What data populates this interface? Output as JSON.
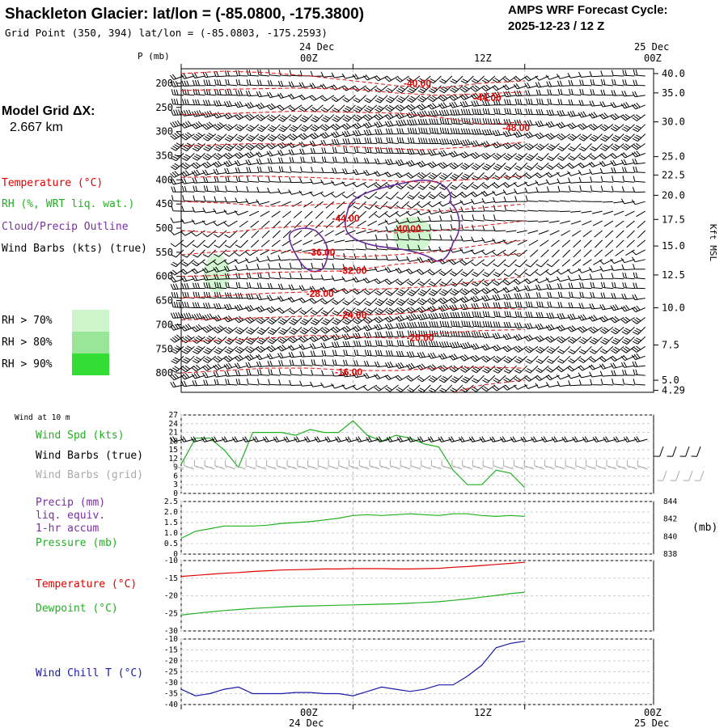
{
  "header": {
    "title": "Shackleton Glacier:  lat/lon = (-85.0800, -175.3800)",
    "subtitle": "Grid Point (350, 394) lat/lon = (-85.0803, -175.2593)",
    "cycle_line1": "AMPS WRF Forecast Cycle:",
    "cycle_line2": "2025-12-23 / 12  Z"
  },
  "sidebar": {
    "model_grid_line1": "Model Grid ΔX:",
    "model_grid_line2": "2.667 km",
    "legend": [
      {
        "label": "Temperature (°C)",
        "color": "#e00000"
      },
      {
        "label": "RH (%, WRT liq. wat.)",
        "color": "#22b022"
      },
      {
        "label": "Cloud/Precip Outline",
        "color": "#7a2fa0"
      },
      {
        "label": "Wind Barbs (kts) (true)",
        "color": "#000000"
      }
    ],
    "rh_boxes": [
      {
        "label": "RH > 70%",
        "color": "#ccf5cc"
      },
      {
        "label": "RH > 80%",
        "color": "#99e699"
      },
      {
        "label": "RH > 90%",
        "color": "#33dd33"
      }
    ]
  },
  "time_axis": {
    "top_labels": [
      {
        "day": "24 Dec",
        "hour": "00Z"
      },
      {
        "day": "",
        "hour": "12Z"
      },
      {
        "day": "25 Dec",
        "hour": "00Z"
      }
    ],
    "bottom_labels": [
      {
        "hour": "00Z",
        "day": "24 Dec"
      },
      {
        "hour": "12Z",
        "day": ""
      },
      {
        "hour": "00Z",
        "day": "25 Dec"
      }
    ],
    "hours": [
      -9,
      3,
      15
    ],
    "range": [
      -9,
      24
    ]
  },
  "chart_data": [
    {
      "type": "line",
      "name": "cross-section",
      "ylabel": "P (mb)",
      "ylabel_right": "Kft MSL",
      "pressure_ticks": [
        200,
        250,
        300,
        350,
        400,
        450,
        500,
        550,
        600,
        650,
        700,
        750,
        800
      ],
      "height_ticks": [
        "40.0",
        "35.0",
        "30.0",
        "25.0",
        "22.5",
        "20.0",
        "17.5",
        "15.0",
        "12.5",
        "10.0",
        "7.5",
        "5.0",
        "4.29"
      ],
      "height_tick_pressures": [
        180,
        220,
        280,
        352,
        390,
        432,
        482,
        537,
        597,
        665,
        742,
        815,
        836
      ],
      "ylim": [
        170,
        840
      ],
      "temperature_isotherms": [
        {
          "label": "-40.00",
          "x": 7.5,
          "p": 200
        },
        {
          "label": "-44.00",
          "x": 12.4,
          "p": 230
        },
        {
          "label": "-48.00",
          "x": 14.4,
          "p": 292
        },
        {
          "label": "-44.00",
          "x": 2.5,
          "p": 480
        },
        {
          "label": "-40.00",
          "x": 6.8,
          "p": 502
        },
        {
          "label": "-36.00",
          "x": 0.8,
          "p": 550
        },
        {
          "label": "-32.00",
          "x": 3.0,
          "p": 588
        },
        {
          "label": "-28.00",
          "x": 0.7,
          "p": 636
        },
        {
          "label": "-24.00",
          "x": 3.0,
          "p": 680
        },
        {
          "label": "-20.00",
          "x": 7.7,
          "p": 727
        },
        {
          "label": "-16.00",
          "x": 2.7,
          "p": 798
        }
      ],
      "barbs": {
        "time_start": -9,
        "time_step": 0.75,
        "count": 45,
        "pressure_levels": [
          185,
          205,
          225,
          245,
          265,
          285,
          305,
          325,
          345,
          365,
          385,
          405,
          425,
          445,
          465,
          485,
          505,
          525,
          545,
          565,
          585,
          605,
          625,
          645,
          665,
          685,
          705,
          725,
          745,
          765,
          785,
          805,
          825
        ]
      }
    },
    {
      "type": "line",
      "name": "wind",
      "title": "Wind at 10 m",
      "labels": [
        "Wind Spd (kts)",
        "Wind Barbs (true)",
        "Wind Barbs (grid)"
      ],
      "label_colors": [
        "#22b022",
        "#000000",
        "#aaaaaa"
      ],
      "y_ticks": [
        27,
        24,
        21,
        18,
        15,
        12,
        9,
        6,
        3,
        0
      ],
      "ylim": [
        0,
        27
      ],
      "x": [
        -9,
        -8,
        -7,
        -6,
        -5,
        -4,
        -3,
        -2,
        -1,
        0,
        1,
        2,
        3,
        4,
        5,
        6,
        7,
        8,
        9,
        10,
        11,
        12,
        13,
        14,
        15
      ],
      "speed": [
        10,
        19,
        19,
        15,
        9,
        21,
        21,
        21,
        20,
        22,
        21,
        21,
        25,
        20,
        18,
        20,
        19,
        17,
        16,
        8,
        3,
        3,
        8,
        7,
        2
      ]
    },
    {
      "type": "line",
      "name": "precip-pressure",
      "labels": [
        "Precip (mm)",
        "liq. equiv.",
        "1-hr accum",
        "Pressure (mb)"
      ],
      "label_colors": [
        "#7a2fa0",
        "#7a2fa0",
        "#7a2fa0",
        "#22b022"
      ],
      "y_ticks_left": [
        "2.5",
        "2.0",
        "1.5",
        "1.0",
        "0.5",
        "0"
      ],
      "y_ticks_right": [
        "844",
        "842",
        "840",
        "838"
      ],
      "right_unit": "(mb)",
      "ylim_left": [
        0,
        2.5
      ],
      "ylim_right": [
        838,
        844
      ],
      "x": [
        -9,
        -8,
        -7,
        -6,
        -5,
        -4,
        -3,
        -2,
        -1,
        0,
        1,
        2,
        3,
        4,
        5,
        6,
        7,
        8,
        9,
        10,
        11,
        12,
        13,
        14,
        15
      ],
      "pressure": [
        839.8,
        840.6,
        840.9,
        841.2,
        841.2,
        841.2,
        841.3,
        841.5,
        841.6,
        841.7,
        841.9,
        842.1,
        842.4,
        842.5,
        842.4,
        842.5,
        842.6,
        842.5,
        842.4,
        842.6,
        842.6,
        842.4,
        842.3,
        842.4,
        842.3
      ],
      "precip": [
        0,
        0,
        0,
        0,
        0,
        0,
        0,
        0,
        0,
        0,
        0,
        0,
        0,
        0,
        0,
        0,
        0,
        0,
        0,
        0,
        0,
        0,
        0,
        0,
        0
      ]
    },
    {
      "type": "line",
      "name": "temperature-dewpoint",
      "labels": [
        "Temperature (°C)",
        "Dewpoint (°C)"
      ],
      "label_colors": [
        "#e00000",
        "#22b022"
      ],
      "y_ticks": [
        -10,
        -15,
        -20,
        -25,
        -30
      ],
      "ylim": [
        -30,
        -10
      ],
      "x": [
        -9,
        -8,
        -7,
        -6,
        -5,
        -4,
        -3,
        -2,
        -1,
        0,
        1,
        2,
        3,
        4,
        5,
        6,
        7,
        8,
        9,
        10,
        11,
        12,
        13,
        14,
        15
      ],
      "temperature": [
        -14.5,
        -14.2,
        -13.9,
        -13.6,
        -13.4,
        -13.1,
        -12.9,
        -12.7,
        -12.6,
        -12.5,
        -12.4,
        -12.4,
        -12.3,
        -12.3,
        -12.3,
        -12.4,
        -12.4,
        -12.3,
        -12.2,
        -11.9,
        -11.7,
        -11.4,
        -11.1,
        -10.8,
        -10.5
      ],
      "dewpoint": [
        -25.5,
        -25.0,
        -24.6,
        -24.2,
        -23.9,
        -23.6,
        -23.4,
        -23.2,
        -23.0,
        -22.9,
        -22.8,
        -22.7,
        -22.6,
        -22.5,
        -22.4,
        -22.3,
        -22.1,
        -21.9,
        -21.7,
        -21.3,
        -20.9,
        -20.4,
        -19.9,
        -19.4,
        -19.0
      ]
    },
    {
      "type": "line",
      "name": "wind-chill",
      "labels": [
        "Wind Chill T (°C)"
      ],
      "label_colors": [
        "#1a1aa8"
      ],
      "y_ticks": [
        -10,
        -15,
        -20,
        -25,
        -30,
        -35,
        -40
      ],
      "ylim": [
        -40,
        -10
      ],
      "x": [
        -9,
        -8,
        -7,
        -6,
        -5,
        -4,
        -3,
        -2,
        -1,
        0,
        1,
        2,
        3,
        4,
        5,
        6,
        7,
        8,
        9,
        10,
        11,
        12,
        13,
        14,
        15
      ],
      "windchill": [
        -33,
        -36,
        -35,
        -33,
        -32,
        -35,
        -35,
        -35,
        -34.5,
        -34.5,
        -35,
        -35,
        -36,
        -34,
        -32,
        -33,
        -34,
        -33,
        -31,
        -31,
        -27,
        -22,
        -14,
        -12,
        -11
      ]
    }
  ]
}
